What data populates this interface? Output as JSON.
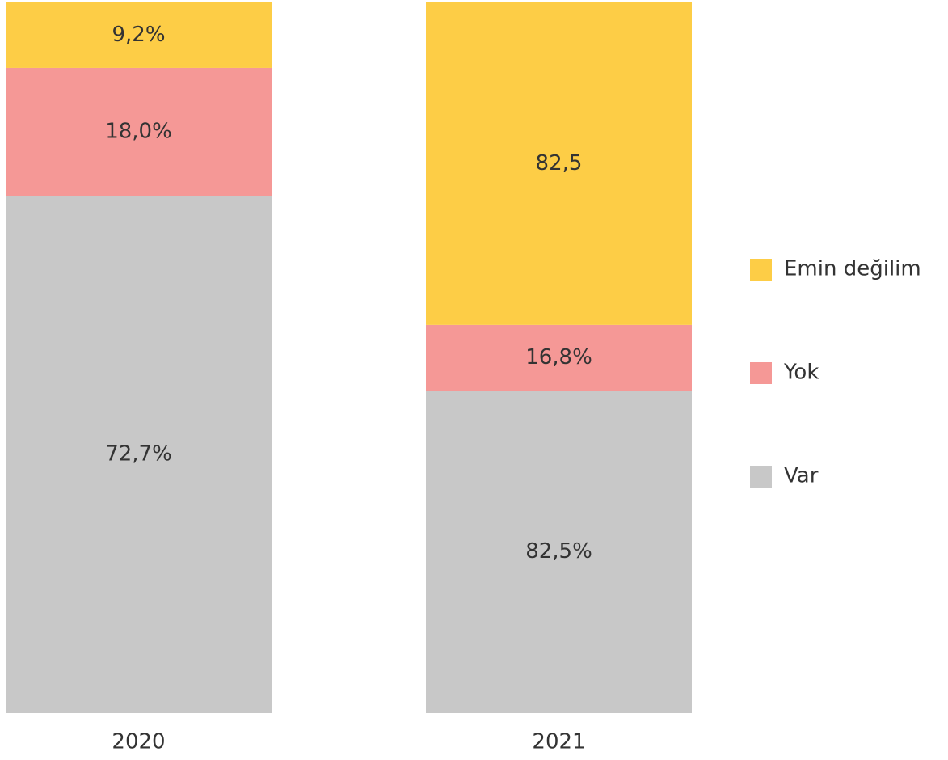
{
  "chart_data": {
    "type": "bar",
    "stacked": true,
    "normalized": true,
    "categories": [
      "2020",
      "2021"
    ],
    "series": [
      {
        "name": "Var",
        "color": "#c8c8c8",
        "values": [
          72.7,
          82.5
        ],
        "value_labels": [
          "72,7%",
          "82,5%"
        ]
      },
      {
        "name": "Yok",
        "color": "#f59896",
        "values": [
          18.0,
          16.8
        ],
        "value_labels": [
          "18,0%",
          "16,8%"
        ]
      },
      {
        "name": "Emin değilim",
        "color": "#fdcd46",
        "values": [
          9.2,
          82.5
        ],
        "value_labels": [
          "9,2%",
          "82,5"
        ]
      }
    ],
    "legend": "right"
  }
}
